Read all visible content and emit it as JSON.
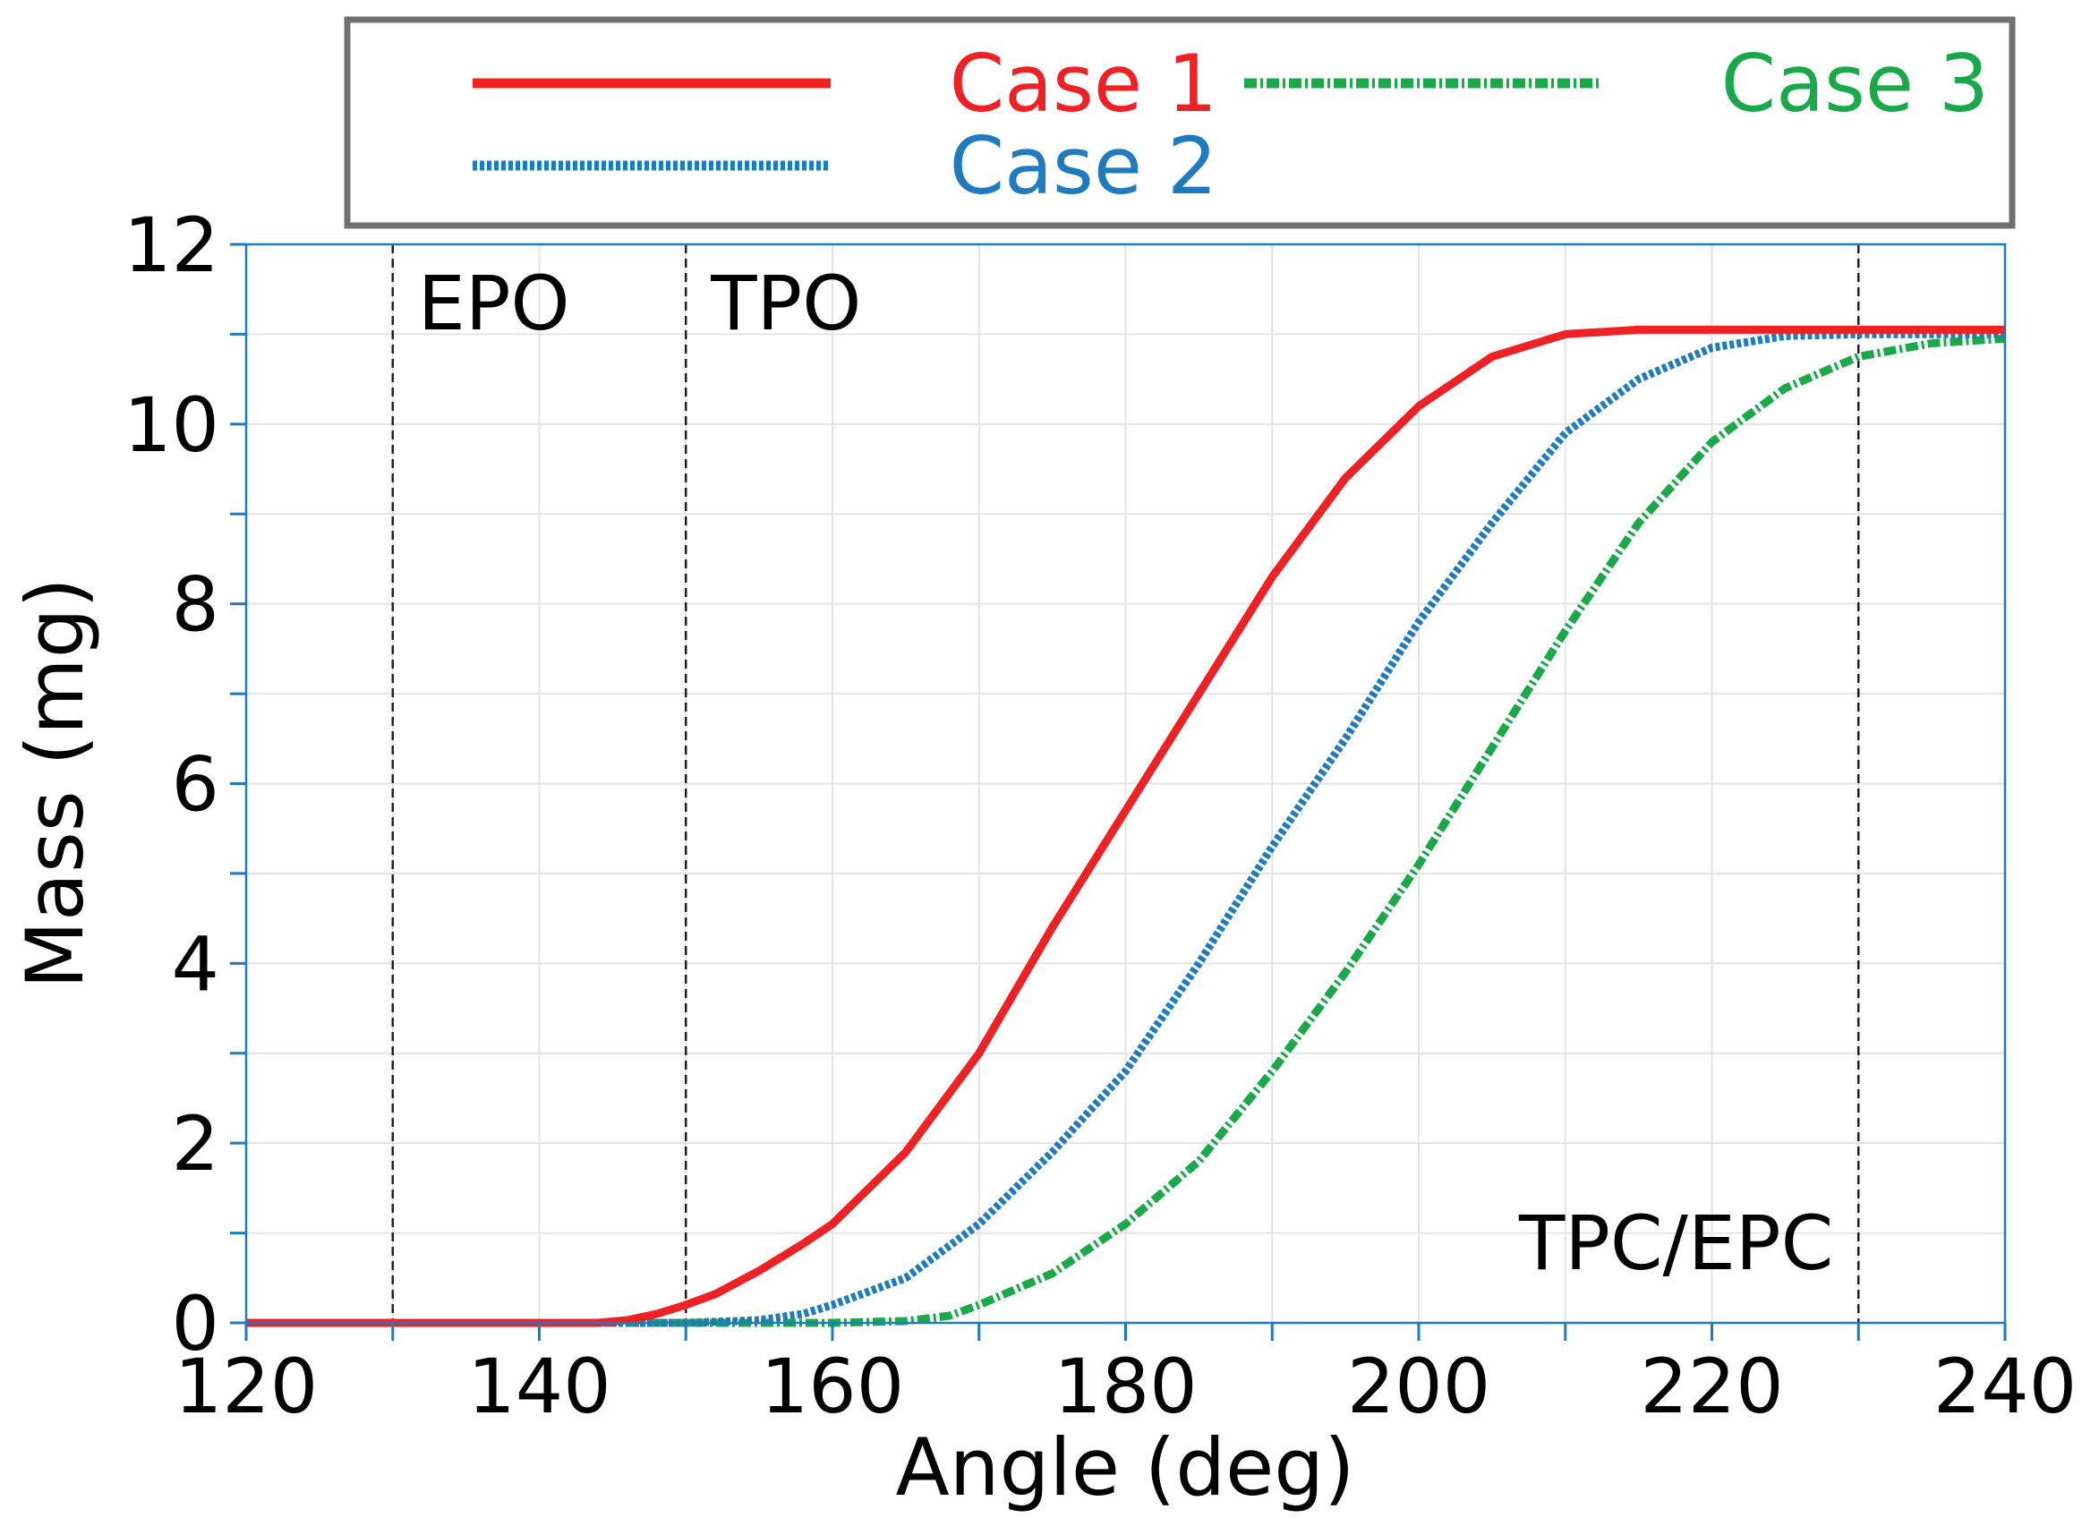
{
  "chart_data": {
    "type": "line",
    "title": "",
    "xlabel": "Angle (deg)",
    "ylabel": "Mass (mg)",
    "xlim": [
      120,
      240
    ],
    "ylim": [
      0,
      12
    ],
    "xticks": [
      120,
      140,
      160,
      180,
      200,
      220,
      240
    ],
    "yticks": [
      0,
      2,
      4,
      6,
      8,
      10,
      12
    ],
    "grid": true,
    "legend_position": "top",
    "vlines": [
      {
        "x": 130,
        "label": "EPO"
      },
      {
        "x": 150,
        "label": "TPO"
      },
      {
        "x": 230,
        "label": "TPC/EPC"
      }
    ],
    "series": [
      {
        "name": "Case 1",
        "color": "#ee2224",
        "style": "solid",
        "x": [
          120,
          140,
          144,
          146,
          148,
          150,
          152,
          155,
          158,
          160,
          165,
          170,
          175,
          180,
          185,
          190,
          195,
          200,
          205,
          210,
          215,
          220,
          230,
          240
        ],
        "y": [
          0,
          0,
          0,
          0.03,
          0.1,
          0.2,
          0.32,
          0.58,
          0.88,
          1.1,
          1.9,
          3.0,
          4.4,
          5.7,
          7.0,
          8.3,
          9.4,
          10.2,
          10.75,
          11.0,
          11.05,
          11.05,
          11.05,
          11.05
        ]
      },
      {
        "name": "Case 2",
        "color": "#1f7bbf",
        "style": "dotted",
        "x": [
          120,
          150,
          155,
          158,
          160,
          165,
          170,
          175,
          180,
          185,
          190,
          195,
          200,
          205,
          210,
          215,
          220,
          225,
          230,
          240
        ],
        "y": [
          0,
          0,
          0.03,
          0.1,
          0.2,
          0.5,
          1.1,
          1.9,
          2.8,
          4.0,
          5.3,
          6.5,
          7.8,
          8.9,
          9.9,
          10.5,
          10.85,
          10.98,
          11.0,
          11.0
        ]
      },
      {
        "name": "Case 3",
        "color": "#1aa84b",
        "style": "dashdot",
        "x": [
          120,
          160,
          165,
          168,
          170,
          175,
          180,
          185,
          190,
          195,
          200,
          205,
          210,
          215,
          220,
          225,
          230,
          235,
          240
        ],
        "y": [
          0,
          0,
          0.02,
          0.08,
          0.2,
          0.55,
          1.1,
          1.8,
          2.8,
          3.9,
          5.1,
          6.4,
          7.7,
          8.9,
          9.8,
          10.4,
          10.75,
          10.9,
          10.95
        ]
      }
    ]
  }
}
